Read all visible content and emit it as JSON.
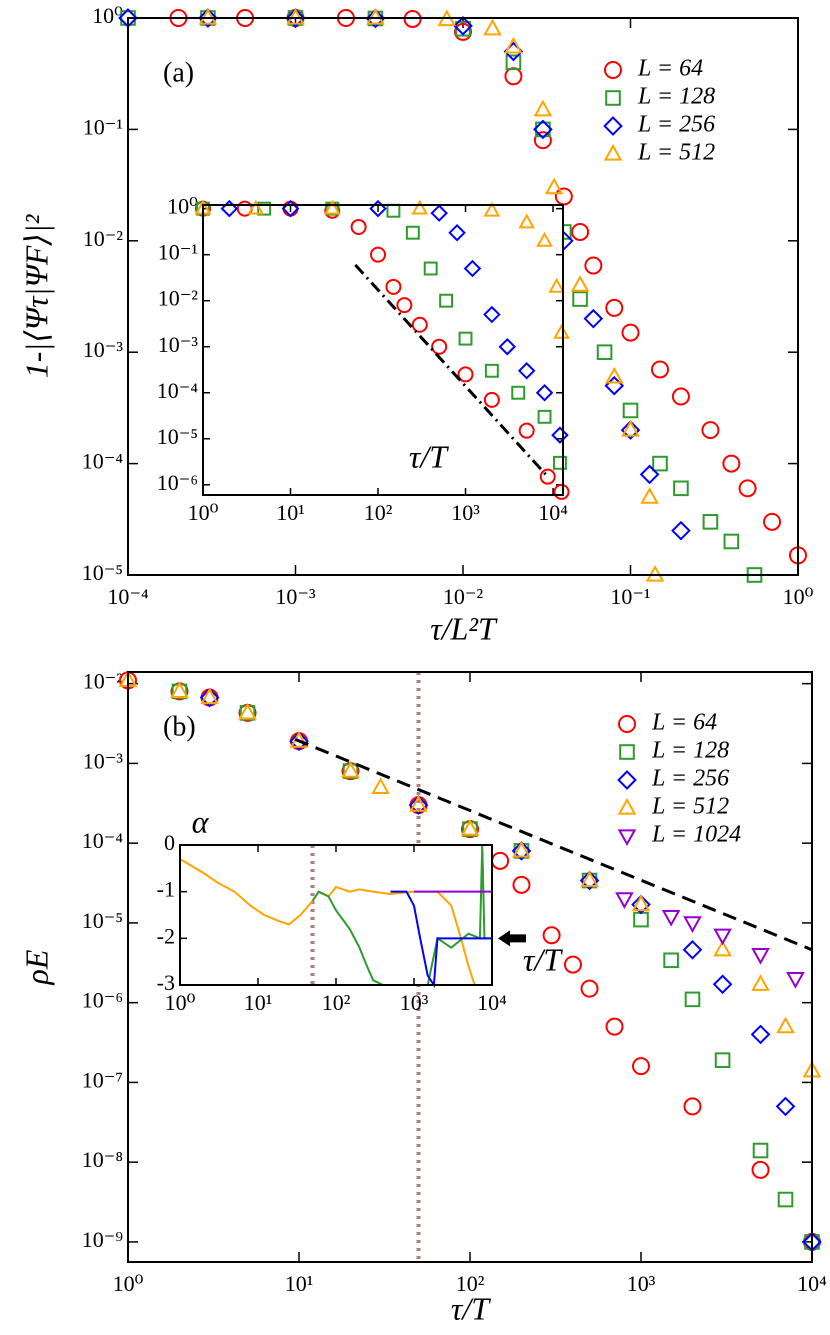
{
  "chart_data": [
    {
      "type": "scatter",
      "xscale": "log",
      "yscale": "log",
      "xlabel": "τ/L²T",
      "ylabel": "1-|⟨Ψτ|ΨF⟩|²",
      "annotation": "(a)",
      "legend": "upper right",
      "xlim": [
        0.0001,
        1
      ],
      "ylim": [
        1e-05,
        1
      ],
      "xticks": [
        {
          "value": 0.0001,
          "label": "10⁻⁴"
        },
        {
          "value": 0.001,
          "label": "10⁻³"
        },
        {
          "value": 0.01,
          "label": "10⁻²"
        },
        {
          "value": 0.1,
          "label": "10⁻¹"
        },
        {
          "value": 1,
          "label": "10⁰"
        }
      ],
      "yticks": [
        {
          "value": 1,
          "label": "10⁰"
        },
        {
          "value": 0.1,
          "label": "10⁻¹"
        },
        {
          "value": 0.01,
          "label": "10⁻²"
        },
        {
          "value": 0.001,
          "label": "10⁻³"
        },
        {
          "value": 0.0001,
          "label": "10⁻⁴"
        },
        {
          "value": 1e-05,
          "label": "10⁻⁵"
        }
      ],
      "series": [
        {
          "name": "L = 64",
          "color": "#ff0000",
          "marker": "circle",
          "x": [
            0.0002,
            0.0005,
            0.001,
            0.002,
            0.005,
            0.01,
            0.02,
            0.03,
            0.04,
            0.05,
            0.06,
            0.08,
            0.1,
            0.15,
            0.2,
            0.3,
            0.4,
            0.5,
            0.7,
            1
          ],
          "values": [
            1,
            1,
            1,
            1,
            0.98,
            0.75,
            0.3,
            0.08,
            0.025,
            0.012,
            0.006,
            0.0025,
            0.0015,
            0.0007,
            0.0004,
            0.0002,
            0.0001,
            6e-05,
            3e-05,
            1.5e-05
          ]
        },
        {
          "name": "L = 128",
          "color": "#2e9b2e",
          "marker": "square",
          "x": [
            0.0001,
            0.0003,
            0.001,
            0.003,
            0.01,
            0.02,
            0.03,
            0.04,
            0.05,
            0.07,
            0.1,
            0.15,
            0.2,
            0.3,
            0.4,
            0.55
          ],
          "values": [
            1,
            1,
            1,
            0.99,
            0.8,
            0.4,
            0.1,
            0.012,
            0.003,
            0.001,
            0.0003,
            0.0001,
            6e-05,
            3e-05,
            2e-05,
            1e-05
          ]
        },
        {
          "name": "L = 256",
          "color": "#0000ff",
          "marker": "diamond",
          "x": [
            0.0001,
            0.0003,
            0.001,
            0.003,
            0.01,
            0.02,
            0.03,
            0.04,
            0.06,
            0.08,
            0.1,
            0.13,
            0.2
          ],
          "values": [
            1,
            1,
            1,
            0.99,
            0.85,
            0.5,
            0.1,
            0.01,
            0.002,
            0.0005,
            0.0002,
            8e-05,
            2.5e-05
          ]
        },
        {
          "name": "L = 512",
          "color": "#ffa500",
          "marker": "triangle",
          "x": [
            0.0003,
            0.001,
            0.003,
            0.008,
            0.015,
            0.02,
            0.03,
            0.035,
            0.05,
            0.08,
            0.1,
            0.13,
            0.14
          ],
          "values": [
            1,
            1,
            1,
            0.97,
            0.8,
            0.55,
            0.15,
            0.03,
            0.004,
            0.0006,
            0.0002,
            5e-05,
            1e-05
          ]
        }
      ]
    },
    {
      "type": "scatter",
      "xscale": "log",
      "yscale": "log",
      "inset": true,
      "xlabel": "τ/T",
      "xlim": [
        1,
        13000
      ],
      "ylim": [
        6e-07,
        1.2
      ],
      "xticks": [
        {
          "value": 1,
          "label": "10⁰"
        },
        {
          "value": 10,
          "label": "10¹"
        },
        {
          "value": 100,
          "label": "10²"
        },
        {
          "value": 1000,
          "label": "10³"
        },
        {
          "value": 10000,
          "label": "10⁴"
        }
      ],
      "yticks": [
        {
          "value": 1,
          "label": "10⁰"
        },
        {
          "value": 0.1,
          "label": "10⁻¹"
        },
        {
          "value": 0.01,
          "label": "10⁻²"
        },
        {
          "value": 0.001,
          "label": "10⁻³"
        },
        {
          "value": 0.0001,
          "label": "10⁻⁴"
        },
        {
          "value": 1e-05,
          "label": "10⁻⁵"
        },
        {
          "value": 1e-06,
          "label": "10⁻⁶"
        }
      ],
      "guide": {
        "style": "dashdot",
        "color": "#000000",
        "x": [
          55,
          8700
        ],
        "values": [
          0.06,
          1.5e-06
        ]
      },
      "series": [
        {
          "color": "#ff0000",
          "marker": "circle",
          "x": [
            1,
            3,
            10,
            30,
            60,
            100,
            150,
            200,
            300,
            500,
            1000,
            2000,
            5000,
            8700,
            12500
          ],
          "values": [
            1,
            1,
            1,
            0.9,
            0.4,
            0.1,
            0.02,
            0.008,
            0.003,
            0.001,
            0.00025,
            7e-05,
            1.5e-05,
            1.5e-06,
            7e-07
          ]
        },
        {
          "color": "#2e9b2e",
          "marker": "square",
          "x": [
            1,
            5,
            30,
            150,
            250,
            400,
            600,
            1000,
            2000,
            4000,
            8000,
            12000
          ],
          "values": [
            1,
            1,
            1,
            0.9,
            0.3,
            0.05,
            0.01,
            0.0015,
            0.0003,
            0.0001,
            3e-05,
            3e-06
          ]
        },
        {
          "color": "#0000ff",
          "marker": "diamond",
          "x": [
            2,
            10,
            100,
            500,
            800,
            1200,
            2000,
            3000,
            5000,
            8000,
            12000
          ],
          "values": [
            1,
            1,
            1,
            0.8,
            0.3,
            0.05,
            0.005,
            0.001,
            0.0003,
            0.0001,
            1.2e-05
          ]
        },
        {
          "color": "#ffa500",
          "marker": "triangle",
          "x": [
            1,
            4,
            30,
            300,
            2000,
            5000,
            8000,
            11000,
            12500
          ],
          "values": [
            1,
            1,
            1,
            1,
            0.9,
            0.5,
            0.2,
            0.02,
            0.002
          ]
        }
      ]
    },
    {
      "type": "scatter",
      "xscale": "log",
      "yscale": "log",
      "xlabel": "τ/T",
      "ylabel": "ρE",
      "annotation": "(b)",
      "legend": "upper right",
      "xlim": [
        1,
        10000
      ],
      "ylim": [
        5.6e-10,
        0.014
      ],
      "xticks": [
        {
          "value": 1,
          "label": "10⁰"
        },
        {
          "value": 10,
          "label": "10¹"
        },
        {
          "value": 100,
          "label": "10²"
        },
        {
          "value": 1000,
          "label": "10³"
        },
        {
          "value": 10000,
          "label": "10⁴"
        }
      ],
      "yticks": [
        {
          "value": 0.01,
          "label": "10⁻²"
        },
        {
          "value": 0.001,
          "label": "10⁻³"
        },
        {
          "value": 0.0001,
          "label": "10⁻⁴"
        },
        {
          "value": 1e-05,
          "label": "10⁻⁵"
        },
        {
          "value": 1e-06,
          "label": "10⁻⁶"
        },
        {
          "value": 1e-07,
          "label": "10⁻⁷"
        },
        {
          "value": 1e-08,
          "label": "10⁻⁸"
        },
        {
          "value": 1e-09,
          "label": "10⁻⁹"
        }
      ],
      "vline": {
        "style": "dotted",
        "color": "#b08080",
        "x": 50
      },
      "guide": {
        "style": "dashed",
        "color": "#000000",
        "x": [
          9.5,
          10000
        ],
        "values": [
          0.002,
          4.6e-06
        ]
      },
      "series": [
        {
          "name": "L = 64",
          "color": "#ff0000",
          "marker": "circle",
          "x": [
            1,
            2,
            3,
            5,
            10,
            20,
            50,
            100,
            150,
            200,
            300,
            400,
            500,
            700,
            1000,
            2000,
            5000,
            10000
          ],
          "values": [
            0.011,
            0.008,
            0.0067,
            0.0043,
            0.0019,
            0.0008,
            0.0003,
            0.00015,
            6e-05,
            3e-05,
            7e-06,
            3e-06,
            1.5e-06,
            5e-07,
            1.6e-07,
            5e-08,
            8e-09,
            1e-09
          ]
        },
        {
          "name": "L = 128",
          "color": "#2e9b2e",
          "marker": "square",
          "x": [
            2,
            5,
            20,
            100,
            200,
            500,
            1000,
            1500,
            2000,
            3000,
            5000,
            7000,
            10000
          ],
          "values": [
            0.008,
            0.0043,
            0.0008,
            0.00015,
            8e-05,
            3.4e-05,
            1.1e-05,
            3.4e-06,
            1.1e-06,
            1.9e-07,
            1.4e-08,
            3.4e-09,
            1e-09
          ]
        },
        {
          "name": "L = 256",
          "color": "#0000ff",
          "marker": "diamond",
          "x": [
            3,
            10,
            50,
            200,
            500,
            1000,
            2000,
            3000,
            5000,
            7000,
            10000
          ],
          "values": [
            0.0067,
            0.0019,
            0.0003,
            8e-05,
            3.4e-05,
            1.7e-05,
            4.6e-06,
            1.7e-06,
            4e-07,
            5e-08,
            1e-09
          ]
        },
        {
          "name": "L = 512",
          "color": "#ffa500",
          "marker": "triangle",
          "x": [
            1,
            2,
            3,
            5,
            10,
            20,
            30,
            50,
            100,
            200,
            500,
            1000,
            3000,
            5000,
            7000,
            10000
          ],
          "values": [
            0.011,
            0.008,
            0.0067,
            0.0043,
            0.0019,
            0.0008,
            0.0005,
            0.0003,
            0.00015,
            8e-05,
            3.4e-05,
            1.7e-05,
            4.6e-06,
            1.7e-06,
            5e-07,
            1.4e-07
          ]
        },
        {
          "name": "L = 1024",
          "color": "#9400d3",
          "marker": "triangle-down",
          "x": [
            800,
            1500,
            2000,
            3000,
            5000,
            8000
          ],
          "values": [
            2e-05,
            1.2e-05,
            1e-05,
            7e-06,
            4e-06,
            2e-06
          ]
        }
      ]
    },
    {
      "type": "line",
      "xscale": "log",
      "yscale": "linear",
      "inset": true,
      "xlabel": "τ/T",
      "ylabel": "α",
      "xlim": [
        1,
        10000
      ],
      "ylim": [
        -3,
        0
      ],
      "xticks": [
        {
          "value": 1,
          "label": "10⁰"
        },
        {
          "value": 10,
          "label": "10¹"
        },
        {
          "value": 100,
          "label": "10²"
        },
        {
          "value": 1000,
          "label": "10³"
        },
        {
          "value": 10000,
          "label": "10⁴"
        }
      ],
      "yticks": [
        0,
        -1,
        -2,
        -3
      ],
      "vline": {
        "style": "dotted",
        "color": "#b08080",
        "x": 50
      },
      "arrow_value": -2,
      "series": [
        {
          "color": "#ffa500",
          "x": [
            1,
            2,
            3,
            5,
            8,
            12,
            20,
            25,
            35,
            50,
            60,
            80,
            100,
            150,
            200,
            300,
            500,
            1000,
            2000,
            3000,
            4000,
            5000,
            6000
          ],
          "values": [
            -0.3,
            -0.6,
            -0.8,
            -1.0,
            -1.3,
            -1.5,
            -1.65,
            -1.7,
            -1.5,
            -1.2,
            -1.0,
            -1.1,
            -0.9,
            -1.0,
            -0.95,
            -1.0,
            -1.05,
            -1.0,
            -1.0,
            -1.3,
            -2.0,
            -2.6,
            -3.0
          ]
        },
        {
          "color": "#2e9b2e",
          "x": [
            50,
            60,
            80,
            100,
            150,
            200,
            250,
            300,
            400,
            1000,
            1500,
            2000,
            3000,
            5000,
            7000,
            7500,
            8000,
            10000
          ],
          "values": [
            -1.2,
            -1.0,
            -1.1,
            -1.4,
            -1.8,
            -2.2,
            -2.6,
            -2.9,
            -3.0,
            null,
            -3.0,
            -2.0,
            -2.2,
            -1.9,
            -2.0,
            0,
            -2.0,
            -2.0
          ]
        },
        {
          "color": "#0000ff",
          "x": [
            500,
            800,
            1000,
            1200,
            1500,
            1800,
            2000,
            3000,
            5000,
            10000
          ],
          "values": [
            -1.0,
            -1.0,
            -1.3,
            -2.0,
            -2.8,
            -3.0,
            -2.0,
            -2.0,
            -2.0,
            -2.0
          ]
        },
        {
          "color": "#9400d3",
          "x": [
            1000,
            2000,
            5000,
            10000
          ],
          "values": [
            -1,
            -1,
            -1,
            -1
          ]
        }
      ]
    }
  ]
}
